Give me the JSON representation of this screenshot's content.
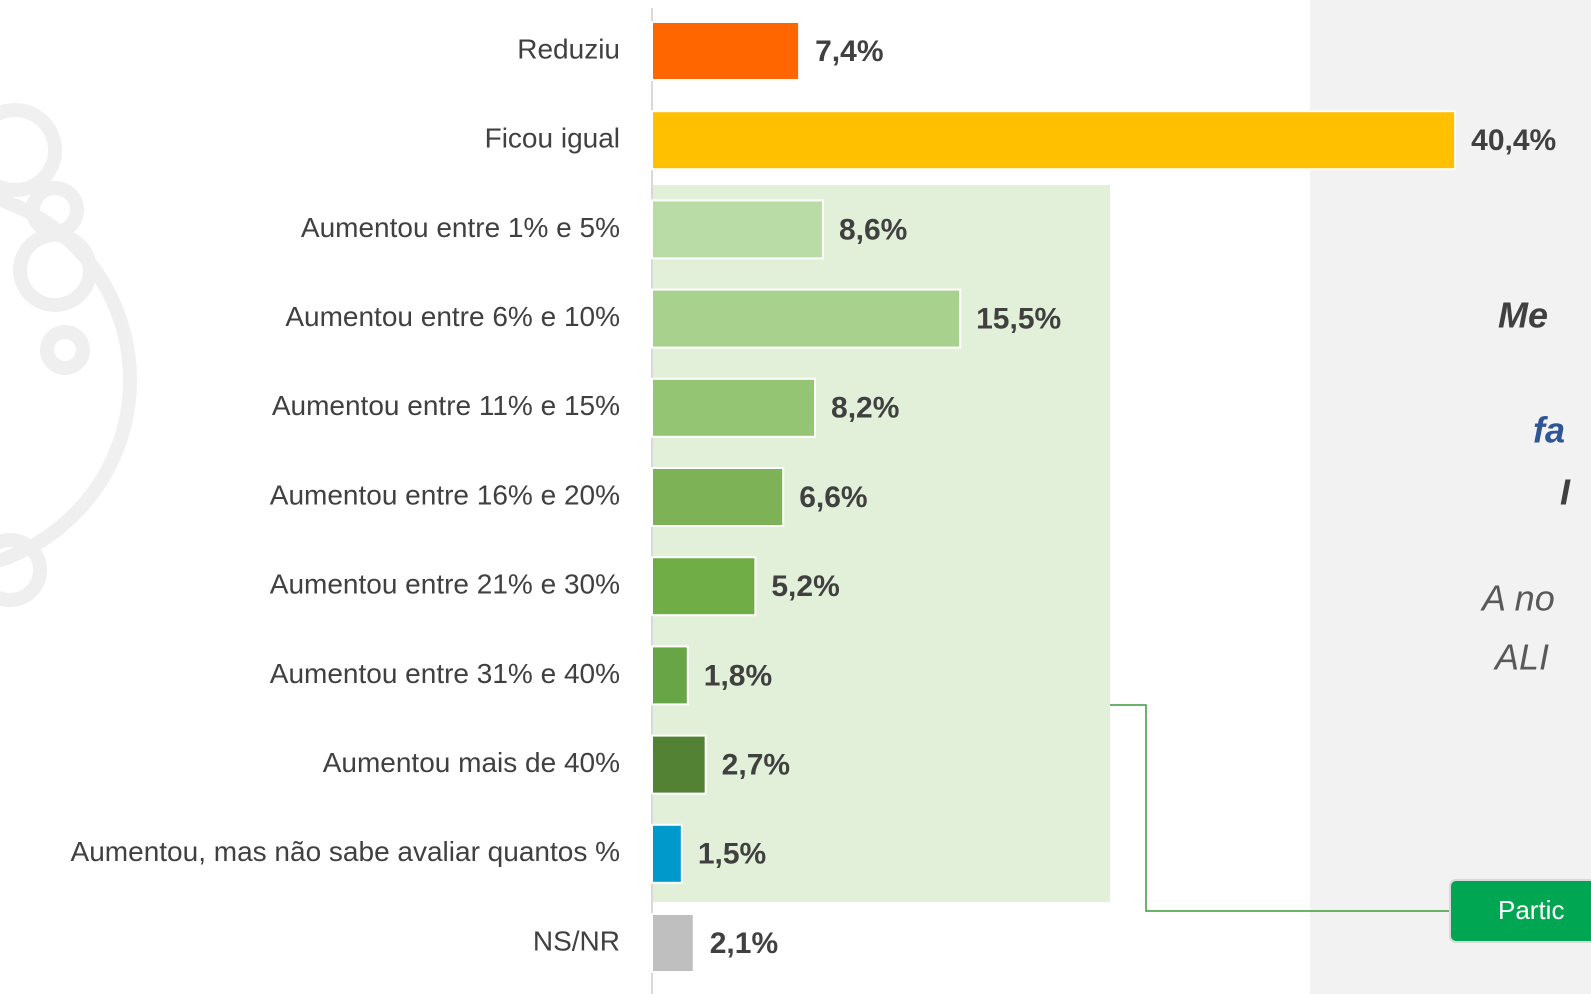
{
  "chart_data": {
    "type": "bar",
    "orientation": "horizontal",
    "categories": [
      "Reduziu",
      "Ficou igual",
      "Aumentou entre 1% e 5%",
      "Aumentou entre 6% e 10%",
      "Aumentou entre 11% e 15%",
      "Aumentou entre 16% e 20%",
      "Aumentou entre 21% e 30%",
      "Aumentou entre 31% e 40%",
      "Aumentou mais de 40%",
      "Aumentou, mas não sabe avaliar quantos %",
      "NS/NR"
    ],
    "values": [
      7.4,
      40.4,
      8.6,
      15.5,
      8.2,
      6.6,
      5.2,
      1.8,
      2.7,
      1.5,
      2.1
    ],
    "value_labels": [
      "7,4%",
      "40,4%",
      "8,6%",
      "15,5%",
      "8,2%",
      "6,6%",
      "5,2%",
      "1,8%",
      "2,7%",
      "1,5%",
      "2,1%"
    ],
    "colors": [
      "#ff6600",
      "#ffc000",
      "#b9dca6",
      "#a9d18e",
      "#93c572",
      "#7db356",
      "#70ad47",
      "#67a546",
      "#548235",
      "#0099cc",
      "#bfbfbf"
    ],
    "annotations": [
      {
        "text": "Me",
        "color": "#404040",
        "bold": true
      },
      {
        "text": "fa",
        "color": "#2f5597",
        "bold": true
      },
      {
        "text": "I",
        "color": "#404040",
        "bold": true
      },
      {
        "text": "A no",
        "color": "#595959",
        "bold": false
      },
      {
        "text": "ALI",
        "color": "#595959",
        "bold": false
      }
    ],
    "button_label": "Partic"
  }
}
